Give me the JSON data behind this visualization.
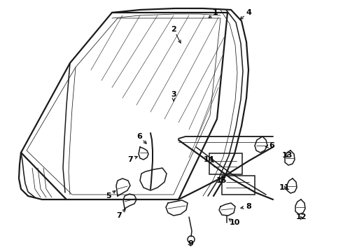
{
  "background_color": "#ffffff",
  "line_color": "#1a1a1a",
  "text_color": "#000000",
  "fig_width": 4.9,
  "fig_height": 3.6,
  "dpi": 100,
  "lw_main": 1.1,
  "lw_thin": 0.55,
  "lw_thick": 1.6
}
